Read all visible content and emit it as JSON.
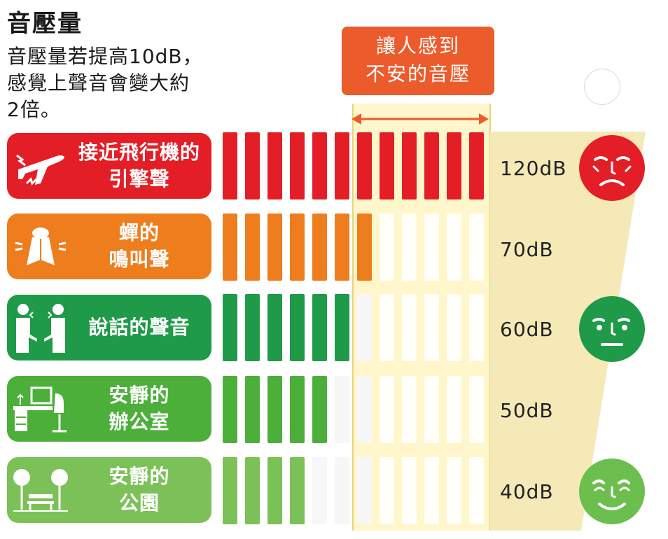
{
  "title": "音壓量",
  "description": [
    "音壓量若提高10dB，",
    "感覺上聲音會變大約",
    "2倍。"
  ],
  "callout": [
    "讓人感到",
    "不安的音壓"
  ],
  "chart_data": {
    "type": "bar",
    "categories": [
      "接近飛行機的引擎聲",
      "蟬的鳴叫聲",
      "說話的聲音",
      "安靜的辦公室",
      "安靜的公園"
    ],
    "values": [
      120,
      70,
      60,
      50,
      40
    ],
    "unit": "dB",
    "segments_total": 12,
    "segments_filled": [
      12,
      7,
      6,
      5,
      4
    ],
    "uneasy_zone_segments": [
      7,
      12
    ]
  },
  "rows": [
    {
      "label": [
        "接近飛行機的",
        "引擎聲"
      ],
      "db": "120dB",
      "color": "#e41e26",
      "icon": "airplane-icon",
      "filled": 12
    },
    {
      "label": [
        "蟬的",
        "鳴叫聲"
      ],
      "db": "70dB",
      "color": "#ee7d1e",
      "icon": "cicada-icon",
      "filled": 7
    },
    {
      "label": [
        "說話的聲音"
      ],
      "db": "60dB",
      "color": "#1e9a48",
      "icon": "people-talking-icon",
      "filled": 6
    },
    {
      "label": [
        "安靜的",
        "辦公室"
      ],
      "db": "50dB",
      "color": "#4caf3a",
      "icon": "office-desk-icon",
      "filled": 5
    },
    {
      "label": [
        "安靜的",
        "公園"
      ],
      "db": "40dB",
      "color": "#7cc158",
      "icon": "park-bench-icon",
      "filled": 4
    }
  ],
  "faces": [
    {
      "icon": "upset-face-icon",
      "color": "#e41e26"
    },
    {
      "icon": "neutral-face-icon",
      "color": "#1e9a48"
    },
    {
      "icon": "happy-face-icon",
      "color": "#6cbf4e"
    }
  ]
}
